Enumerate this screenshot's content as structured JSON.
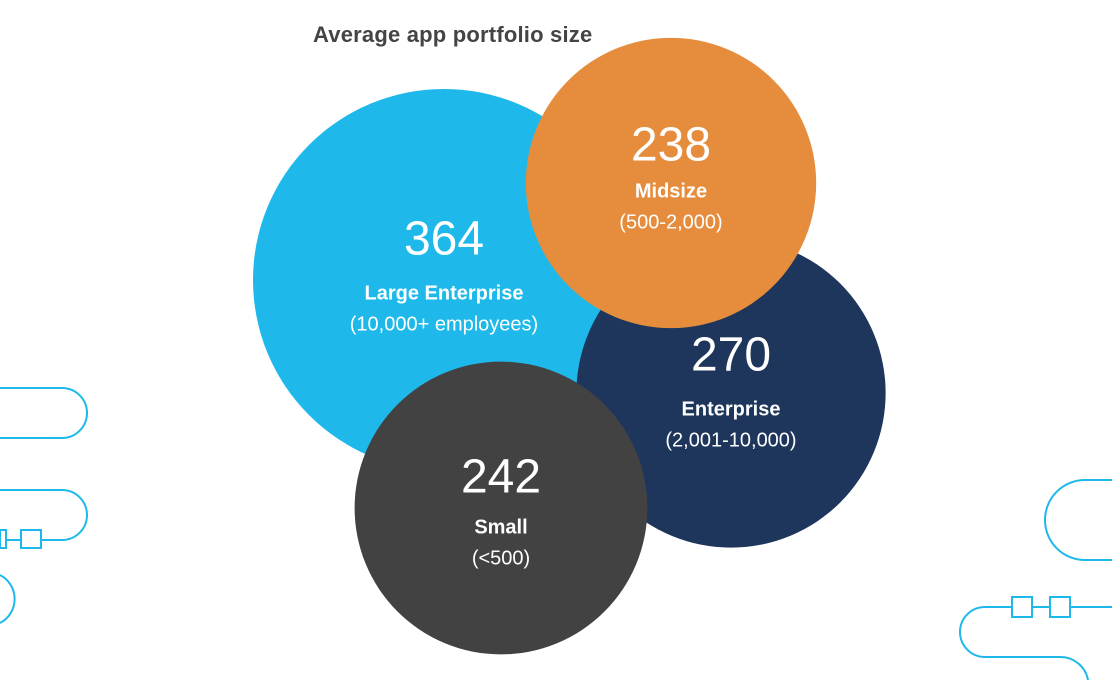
{
  "chart_data": {
    "type": "bubble",
    "title": "Average app portfolio size",
    "series": [
      {
        "value": 364,
        "label": "Large Enterprise",
        "sublabel": "(10,000+ employees)",
        "color": "#1EB9EA"
      },
      {
        "value": 270,
        "label": "Enterprise",
        "sublabel": "(2,001-10,000)",
        "color": "#1E355C"
      },
      {
        "value": 242,
        "label": "Small",
        "sublabel": "(<500)",
        "color": "#424242"
      },
      {
        "value": 238,
        "label": "Midsize",
        "sublabel": "(500-2,000)",
        "color": "#E58D3D"
      }
    ]
  },
  "decoration": {
    "line_color": "#1EB9EA"
  }
}
